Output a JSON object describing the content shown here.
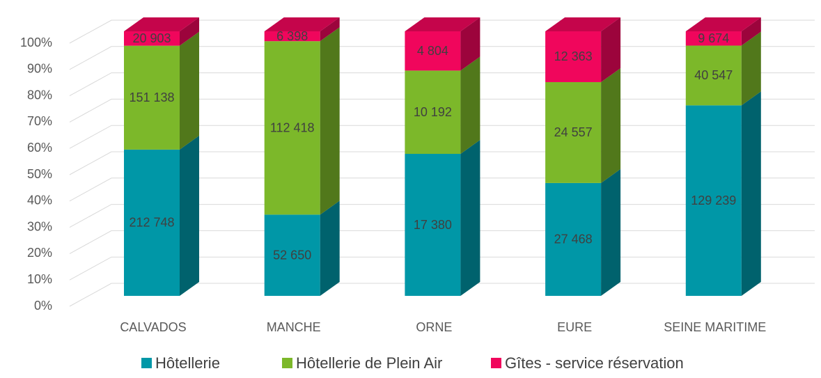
{
  "chart_data": {
    "type": "bar",
    "stack": "percent",
    "categories": [
      "CALVADOS",
      "MANCHE",
      "ORNE",
      "EURE",
      "SEINE MARITIME"
    ],
    "series": [
      {
        "name": "Hôtellerie",
        "color": "#0097a7",
        "values": [
          212748,
          52650,
          17380,
          27468,
          129239
        ],
        "value_labels": [
          "212 748",
          "52 650",
          "17 380",
          "27 468",
          "129 239"
        ]
      },
      {
        "name": "Hôtellerie de Plein Air",
        "color": "#7cb82a",
        "values": [
          151138,
          112418,
          10192,
          24557,
          40547
        ],
        "value_labels": [
          "151 138",
          "112 418",
          "10 192",
          "24 557",
          "40 547"
        ]
      },
      {
        "name": "Gîtes - service réservation",
        "color": "#f0065c",
        "values": [
          20903,
          6398,
          4804,
          12363,
          9674
        ],
        "value_labels": [
          "20 903",
          "6 398",
          "4 804",
          "12 363",
          "9 674"
        ]
      }
    ],
    "ylim": [
      0,
      100
    ],
    "yticks": [
      {
        "value": 0,
        "label": "0%"
      },
      {
        "value": 10,
        "label": "10%"
      },
      {
        "value": 20,
        "label": "20%"
      },
      {
        "value": 30,
        "label": "30%"
      },
      {
        "value": 40,
        "label": "40%"
      },
      {
        "value": 50,
        "label": "50%"
      },
      {
        "value": 60,
        "label": "60%"
      },
      {
        "value": 70,
        "label": "70%"
      },
      {
        "value": 80,
        "label": "80%"
      },
      {
        "value": 90,
        "label": "90%"
      },
      {
        "value": 100,
        "label": "100%"
      }
    ],
    "grid": true,
    "legend": "bottom"
  }
}
